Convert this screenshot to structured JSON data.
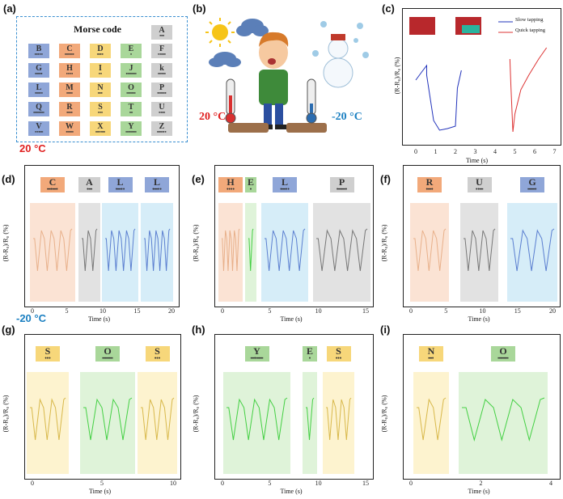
{
  "panels": {
    "a": {
      "letter": "(a)",
      "title": "Morse code"
    },
    "b": {
      "letter": "(b)",
      "hot_label": "20 °C",
      "cold_label": "-20 °C"
    },
    "c": {
      "letter": "(c)",
      "legend": [
        "Slow tapping",
        "Quick tapping"
      ],
      "xlabel": "Time (s)",
      "ylabel": "(R-R₀)/R₀ (%)",
      "xticks": [
        "0",
        "1",
        "2",
        "3",
        "4",
        "5",
        "6",
        "7"
      ]
    },
    "d": {
      "letter": "(d)",
      "xlabel": "Time (s)",
      "ylabel": "(R-R₀)/R₀ (%)",
      "xticks": [
        "0",
        "5",
        "10",
        "15",
        "20"
      ]
    },
    "e": {
      "letter": "(e)",
      "xlabel": "Time (s)",
      "ylabel": "(R-R₀)/R₀ (%)",
      "xticks": [
        "0",
        "5",
        "10",
        "15"
      ]
    },
    "f": {
      "letter": "(f)",
      "xlabel": "Time (s)",
      "ylabel": "(R-R₀)/R₀ (%)",
      "xticks": [
        "0",
        "5",
        "10",
        "15",
        "20"
      ]
    },
    "g": {
      "letter": "(g)",
      "xlabel": "Time (s)",
      "ylabel": "(R-R₀)/R₀ (%)",
      "xticks": [
        "0",
        "5",
        "10"
      ]
    },
    "h": {
      "letter": "(h)",
      "xlabel": "Time (s)",
      "ylabel": "(R-R₀)/R₀ (%)",
      "xticks": [
        "0",
        "5",
        "10",
        "15"
      ]
    },
    "i": {
      "letter": "(i)",
      "xlabel": "Time (s)",
      "ylabel": "(R-R₀)/R₀ (%)",
      "xticks": [
        "0",
        "2",
        "4"
      ]
    }
  },
  "row_labels": {
    "hot": "20 °C",
    "cold": "-20 °C"
  },
  "morse": [
    {
      "ch": "B",
      "code": "━•••",
      "color": "#8fa6d8"
    },
    {
      "ch": "C",
      "code": "━•━•",
      "color": "#f2a97a"
    },
    {
      "ch": "D",
      "code": "━••",
      "color": "#f7d77a"
    },
    {
      "ch": "E",
      "code": "•",
      "color": "#a9d79a"
    },
    {
      "ch": "F",
      "code": "••━•",
      "color": "#cfcfcf"
    },
    {
      "ch": "G",
      "code": "━━•",
      "color": "#8fa6d8"
    },
    {
      "ch": "H",
      "code": "••••",
      "color": "#f2a97a"
    },
    {
      "ch": "I",
      "code": "••",
      "color": "#f7d77a"
    },
    {
      "ch": "J",
      "code": "•━━━",
      "color": "#a9d79a"
    },
    {
      "ch": "k",
      "code": "━•━",
      "color": "#cfcfcf"
    },
    {
      "ch": "L",
      "code": "•━••",
      "color": "#8fa6d8"
    },
    {
      "ch": "M",
      "code": "━━",
      "color": "#f2a97a"
    },
    {
      "ch": "N",
      "code": "━•",
      "color": "#f7d77a"
    },
    {
      "ch": "O",
      "code": "━━━",
      "color": "#a9d79a"
    },
    {
      "ch": "P",
      "code": "•━━•",
      "color": "#cfcfcf"
    },
    {
      "ch": "Q",
      "code": "━━•━",
      "color": "#8fa6d8"
    },
    {
      "ch": "R",
      "code": "•━•",
      "color": "#f2a97a"
    },
    {
      "ch": "S",
      "code": "•••",
      "color": "#f7d77a"
    },
    {
      "ch": "T",
      "code": "━",
      "color": "#a9d79a"
    },
    {
      "ch": "U",
      "code": "••━",
      "color": "#cfcfcf"
    },
    {
      "ch": "V",
      "code": "•••━",
      "color": "#8fa6d8"
    },
    {
      "ch": "W",
      "code": "•━━",
      "color": "#f2a97a"
    },
    {
      "ch": "X",
      "code": "━••━",
      "color": "#f7d77a"
    },
    {
      "ch": "Y",
      "code": "━•━━",
      "color": "#a9d79a"
    },
    {
      "ch": "Z",
      "code": "━━••",
      "color": "#cfcfcf"
    }
  ],
  "morse_a": {
    "ch": "A",
    "code": "•━",
    "color": "#cfcfcf"
  },
  "words": {
    "d": [
      {
        "ch": "C",
        "code": "━•━•",
        "color": "#f2a97a"
      },
      {
        "ch": "A",
        "code": "•━",
        "color": "#cfcfcf"
      },
      {
        "ch": "L",
        "code": "•━••",
        "color": "#8fa6d8"
      },
      {
        "ch": "L",
        "code": "•━••",
        "color": "#8fa6d8"
      }
    ],
    "e": [
      {
        "ch": "H",
        "code": "••••",
        "color": "#f2a97a"
      },
      {
        "ch": "E",
        "code": "•",
        "color": "#a9d79a"
      },
      {
        "ch": "L",
        "code": "•━••",
        "color": "#8fa6d8"
      },
      {
        "ch": "P",
        "code": "•━━•",
        "color": "#cfcfcf"
      }
    ],
    "f": [
      {
        "ch": "R",
        "code": "•━•",
        "color": "#f2a97a"
      },
      {
        "ch": "U",
        "code": "••━",
        "color": "#cfcfcf"
      },
      {
        "ch": "G",
        "code": "━━•",
        "color": "#8fa6d8"
      }
    ],
    "g": [
      {
        "ch": "S",
        "code": "•••",
        "color": "#f7d77a"
      },
      {
        "ch": "O",
        "code": "━━━",
        "color": "#a9d79a"
      },
      {
        "ch": "S",
        "code": "•••",
        "color": "#f7d77a"
      }
    ],
    "h": [
      {
        "ch": "Y",
        "code": "━•━━",
        "color": "#a9d79a"
      },
      {
        "ch": "E",
        "code": "•",
        "color": "#a9d79a"
      },
      {
        "ch": "S",
        "code": "•••",
        "color": "#f7d77a"
      }
    ],
    "i": [
      {
        "ch": "N",
        "code": "━•",
        "color": "#f7d77a"
      },
      {
        "ch": "O",
        "code": "━━━",
        "color": "#a9d79a"
      }
    ]
  },
  "colors": {
    "hot": "#e02020",
    "cold": "#1a7fc1",
    "slow": "#2233bb",
    "quick": "#dd3333"
  }
}
